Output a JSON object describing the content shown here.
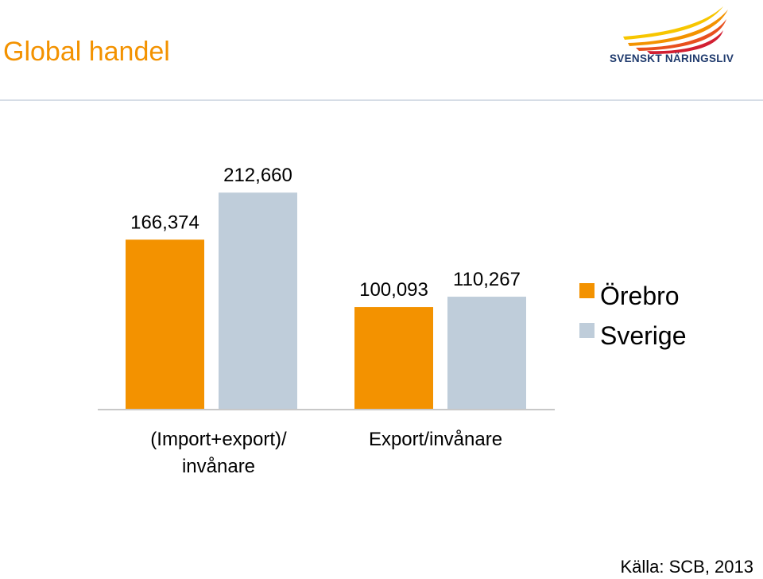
{
  "slide": {
    "title": "Global handel",
    "logo_text": "SVENSKT NÄRINGSLIV",
    "source": "Källa: SCB, 2013"
  },
  "colors": {
    "title": "#F39200",
    "orebro": "#F39200",
    "sverige": "#BFCDDA",
    "axis": "#c8c8c8",
    "logo_text": "#1f3a6d"
  },
  "chart_data": {
    "type": "bar",
    "categories": [
      "(Import+export)/\ninvånare",
      "Export/invånare"
    ],
    "series": [
      {
        "name": "Örebro",
        "color": "#F39200",
        "values": [
          166374,
          100093
        ],
        "labels": [
          "166,374",
          "100,093"
        ]
      },
      {
        "name": "Sverige",
        "color": "#BFCDDA",
        "values": [
          212660,
          110267
        ],
        "labels": [
          "212,660",
          "110,267"
        ]
      }
    ],
    "ylim": [
      0,
      230000
    ],
    "grid": false,
    "legend": "right",
    "xlabel": "",
    "ylabel": ""
  }
}
